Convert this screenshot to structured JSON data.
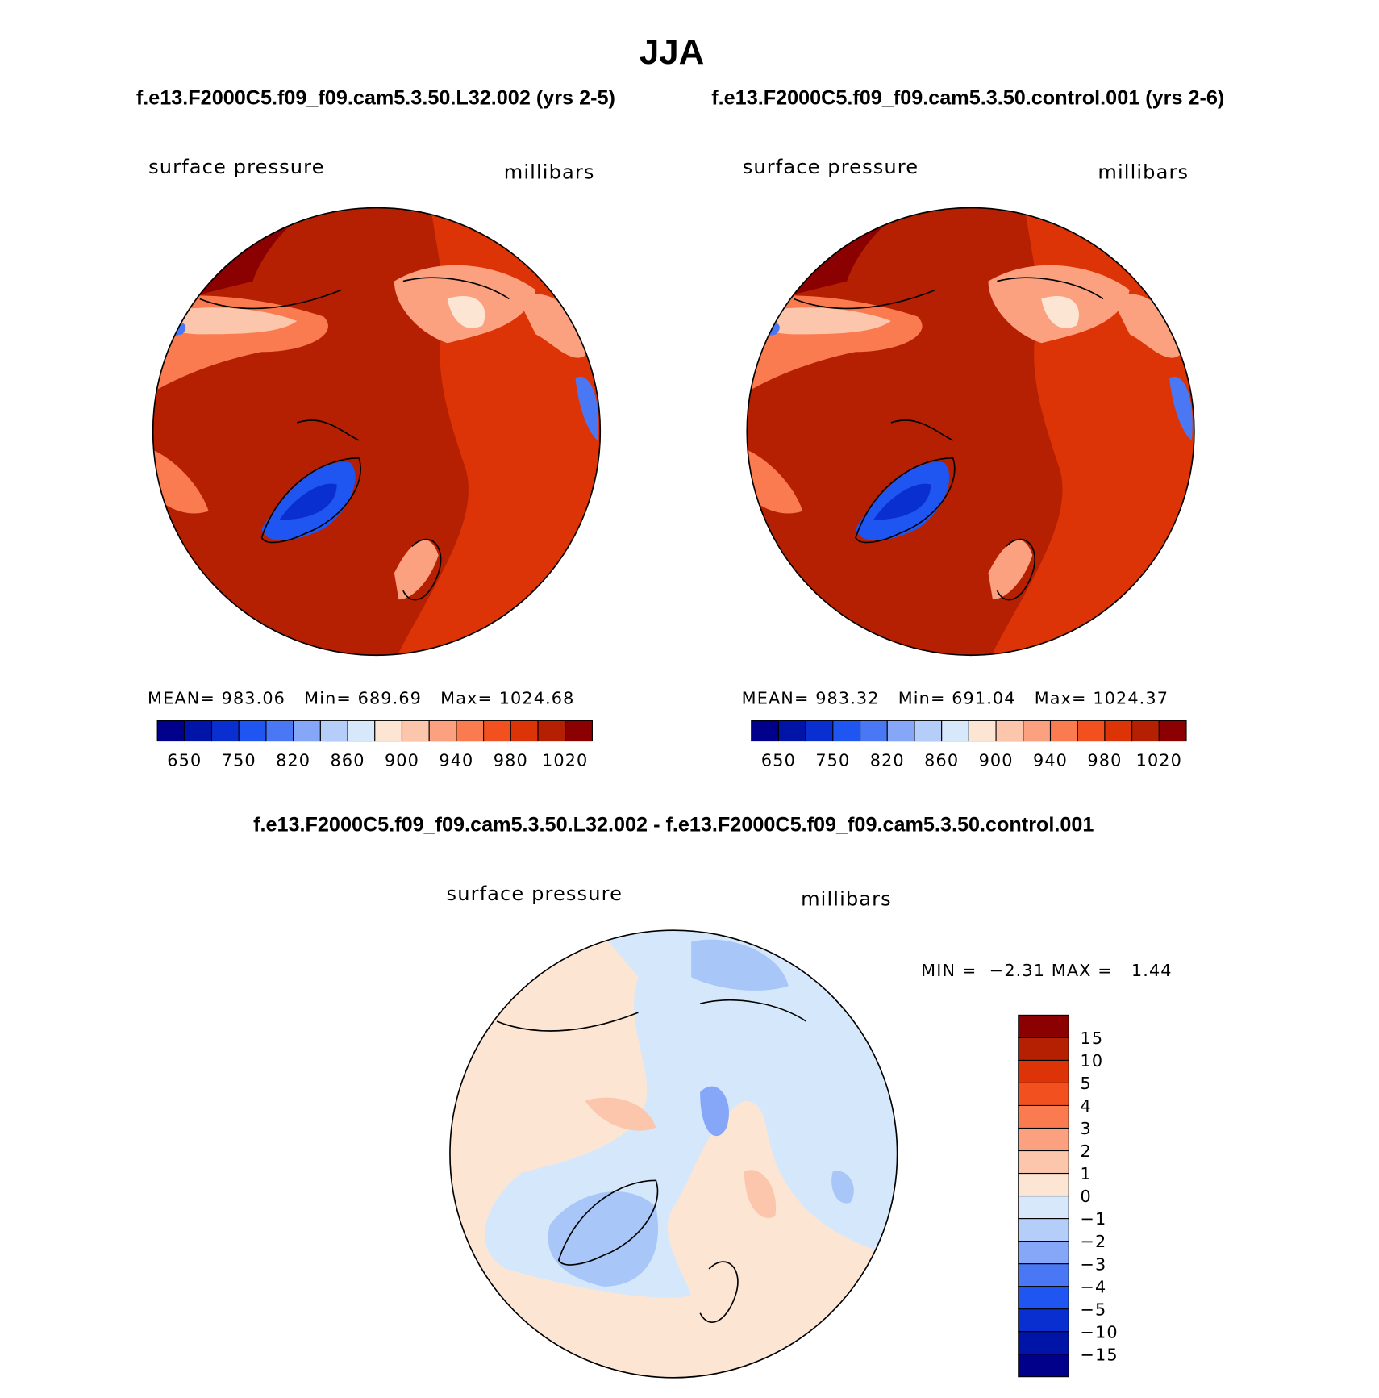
{
  "title": "JJA",
  "panels": [
    {
      "title": "f.e13.F2000C5.f09_f09.cam5.3.50.L32.002 (yrs 2-5)",
      "variable": "surface pressure",
      "units": "millibars",
      "stats": "MEAN= 983.06   Min= 689.69   Max= 1024.68"
    },
    {
      "title": "f.e13.F2000C5.f09_f09.cam5.3.50.control.001 (yrs 2-6)",
      "variable": "surface pressure",
      "units": "millibars",
      "stats": "MEAN= 983.32   Min= 691.04   Max= 1024.37"
    },
    {
      "title": "f.e13.F2000C5.f09_f09.cam5.3.50.L32.002 - f.e13.F2000C5.f09_f09.cam5.3.50.control.001",
      "variable": "surface pressure",
      "units": "millibars",
      "stats": "MIN =  −2.31 MAX =   1.44"
    }
  ],
  "colorbar": {
    "colors": [
      "#00008b",
      "#0015a8",
      "#0a2fd0",
      "#1f55f0",
      "#4a78f5",
      "#86a6f7",
      "#b5cdf9",
      "#d8e8fb",
      "#fde5d4",
      "#fcc6ac",
      "#fba17f",
      "#f97b4f",
      "#f2511f",
      "#dc3407",
      "#b52003",
      "#8b0000"
    ],
    "labels": [
      "650",
      "750",
      "820",
      "860",
      "900",
      "940",
      "980",
      "1020"
    ]
  },
  "diff_colorbar": {
    "labels": [
      "15",
      "10",
      "5",
      "4",
      "3",
      "2",
      "1",
      "0",
      "−1",
      "−2",
      "−3",
      "−4",
      "−5",
      "−10",
      "−15"
    ]
  }
}
